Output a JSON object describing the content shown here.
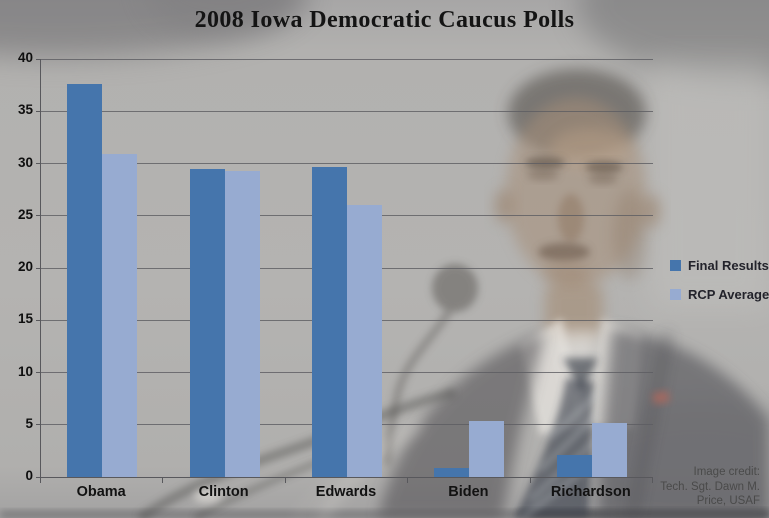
{
  "title": "2008 Iowa Democratic Caucus Polls",
  "chart_data": {
    "type": "bar",
    "title": "2008 Iowa Democratic Caucus Polls",
    "categories": [
      "Obama",
      "Clinton",
      "Edwards",
      "Biden",
      "Richardson"
    ],
    "series": [
      {
        "name": "Final Results",
        "color": "#4575ac",
        "values": [
          37.6,
          29.5,
          29.7,
          0.9,
          2.1
        ]
      },
      {
        "name": "RCP Average",
        "color": "#97abd1",
        "values": [
          30.9,
          29.3,
          26.0,
          5.4,
          5.2
        ]
      }
    ],
    "xlabel": "",
    "ylabel": "",
    "ylim": [
      0,
      40
    ],
    "ytick_step": 5,
    "yticks": [
      0,
      5,
      10,
      15,
      20,
      25,
      30,
      35,
      40
    ],
    "grid": true,
    "legend_position": "right-middle",
    "background": "faded grayscale photo of Barack Obama at a microphone"
  },
  "credit": {
    "lines": [
      "Image credit:",
      "Tech. Sgt. Dawn M.",
      "Price, USAF"
    ]
  },
  "colors": {
    "final_results": "#4575ac",
    "rcp_average": "#97abd1",
    "background_gray": "#b2b1af",
    "gridline": "#5c5c62",
    "axis": "#58585c",
    "title_text": "#141414",
    "credit_text": "#4a4a4a"
  }
}
